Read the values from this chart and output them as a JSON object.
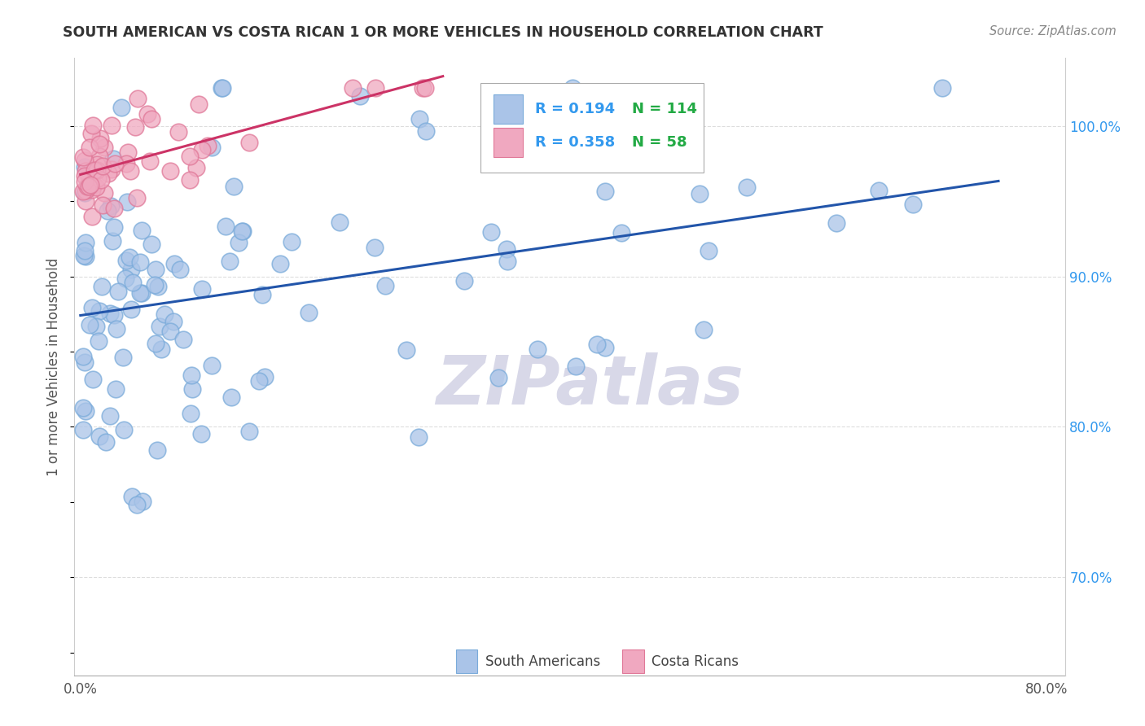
{
  "title": "SOUTH AMERICAN VS COSTA RICAN 1 OR MORE VEHICLES IN HOUSEHOLD CORRELATION CHART",
  "source": "Source: ZipAtlas.com",
  "ylabel": "1 or more Vehicles in Household",
  "xlim": [
    -0.005,
    0.815
  ],
  "ylim": [
    0.635,
    1.045
  ],
  "xtick_positions": [
    0.0,
    0.1,
    0.2,
    0.3,
    0.4,
    0.5,
    0.6,
    0.7,
    0.8
  ],
  "xticklabels": [
    "0.0%",
    "",
    "",
    "",
    "",
    "",
    "",
    "",
    "80.0%"
  ],
  "ytick_positions": [
    0.7,
    0.8,
    0.9,
    1.0
  ],
  "yticklabels": [
    "70.0%",
    "80.0%",
    "90.0%",
    "100.0%"
  ],
  "legend_r1": "R = 0.194",
  "legend_n1": "N = 114",
  "legend_r2": "R = 0.358",
  "legend_n2": "N = 58",
  "blue_color": "#aac4e8",
  "pink_color": "#f0a8c0",
  "blue_edge_color": "#7aabda",
  "pink_edge_color": "#e07898",
  "blue_line_color": "#2255aa",
  "pink_line_color": "#cc3366",
  "legend_r_color": "#3399ee",
  "legend_n_color": "#22aa44",
  "watermark_color": "#d8d8e8",
  "title_color": "#333333",
  "ylabel_color": "#555555",
  "tick_color": "#3399ee",
  "grid_color": "#dddddd"
}
